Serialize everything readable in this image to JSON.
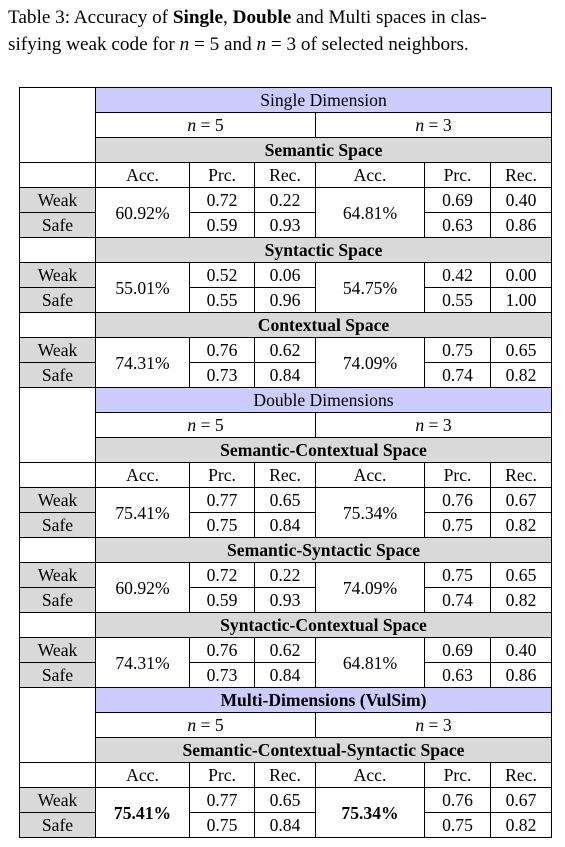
{
  "caption": {
    "prefix": "Table 3: Accuracy of ",
    "single": "Single",
    "comma": ", ",
    "double": "Double",
    "middle": " and Multi spaces in clas-",
    "line2a": "sifying weak code for ",
    "n5": "n",
    "eq5": " = 5 and ",
    "n3": "n",
    "eq3": " = 3 of selected neighbors."
  },
  "headers": {
    "n5": "n",
    "n5_val": " = 5",
    "n3": "n",
    "n3_val": " = 3",
    "acc": "Acc.",
    "prc": "Prc.",
    "rec": "Rec.",
    "weak": "Weak",
    "safe": "Safe"
  },
  "sections": [
    {
      "title": "Single Dimension",
      "spaces": [
        {
          "name": "Semantic Space",
          "acc5": "60.92%",
          "weak5": [
            "0.72",
            "0.22"
          ],
          "safe5": [
            "0.59",
            "0.93"
          ],
          "acc3": "64.81%",
          "weak3": [
            "0.69",
            "0.40"
          ],
          "safe3": [
            "0.63",
            "0.86"
          ]
        },
        {
          "name": "Syntactic Space",
          "acc5": "55.01%",
          "weak5": [
            "0.52",
            "0.06"
          ],
          "safe5": [
            "0.55",
            "0.96"
          ],
          "acc3": "54.75%",
          "weak3": [
            "0.42",
            "0.00"
          ],
          "safe3": [
            "0.55",
            "1.00"
          ]
        },
        {
          "name": "Contextual Space",
          "acc5": "74.31%",
          "weak5": [
            "0.76",
            "0.62"
          ],
          "safe5": [
            "0.73",
            "0.84"
          ],
          "acc3": "74.09%",
          "weak3": [
            "0.75",
            "0.65"
          ],
          "safe3": [
            "0.74",
            "0.82"
          ]
        }
      ]
    },
    {
      "title": "Double Dimensions",
      "spaces": [
        {
          "name": "Semantic-Contextual Space",
          "acc5": "75.41%",
          "weak5": [
            "0.77",
            "0.65"
          ],
          "safe5": [
            "0.75",
            "0.84"
          ],
          "acc3": "75.34%",
          "weak3": [
            "0.76",
            "0.67"
          ],
          "safe3": [
            "0.75",
            "0.82"
          ]
        },
        {
          "name": "Semantic-Syntactic Space",
          "acc5": "60.92%",
          "weak5": [
            "0.72",
            "0.22"
          ],
          "safe5": [
            "0.59",
            "0.93"
          ],
          "acc3": "74.09%",
          "weak3": [
            "0.75",
            "0.65"
          ],
          "safe3": [
            "0.74",
            "0.82"
          ]
        },
        {
          "name": "Syntactic-Contextual Space",
          "acc5": "74.31%",
          "weak5": [
            "0.76",
            "0.62"
          ],
          "safe5": [
            "0.73",
            "0.84"
          ],
          "acc3": "64.81%",
          "weak3": [
            "0.69",
            "0.40"
          ],
          "safe3": [
            "0.63",
            "0.86"
          ]
        }
      ]
    },
    {
      "title": "Multi-Dimensions (VulSim)",
      "spaces": [
        {
          "name": "Semantic-Contextual-Syntactic Space",
          "acc5": "75.41%",
          "weak5": [
            "0.77",
            "0.65"
          ],
          "safe5": [
            "0.75",
            "0.84"
          ],
          "acc3": "75.34%",
          "weak3": [
            "0.76",
            "0.67"
          ],
          "safe3": [
            "0.75",
            "0.82"
          ]
        }
      ]
    }
  ]
}
